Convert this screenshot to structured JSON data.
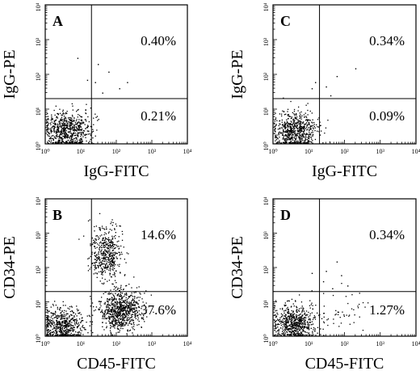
{
  "chart_data": [
    {
      "type": "scatter",
      "panel": "A",
      "xlabel": "IgG-FITC",
      "ylabel": "IgG-PE",
      "xscale": "log",
      "yscale": "log",
      "xlim": [
        1,
        10000
      ],
      "ylim": [
        1,
        10000
      ],
      "x_ticks": [
        "10⁰",
        "10¹",
        "10²",
        "10³",
        "10⁴"
      ],
      "y_ticks": [
        "10⁰",
        "10¹",
        "10²",
        "10³",
        "10⁴"
      ],
      "quadrant_gates": {
        "x": 20,
        "y": 20
      },
      "annotations": {
        "upper_right": "0.40%",
        "lower_right": "0.21%"
      },
      "populations": [
        {
          "cx": 4,
          "cy": 2.5,
          "spread_x": 0.32,
          "spread_y": 0.28,
          "count": 700
        }
      ],
      "outliers": [
        [
          30,
          200
        ],
        [
          60,
          120
        ],
        [
          25,
          60
        ],
        [
          120,
          40
        ],
        [
          8,
          300
        ],
        [
          40,
          30
        ],
        [
          200,
          60
        ],
        [
          15,
          70
        ]
      ]
    },
    {
      "type": "scatter",
      "panel": "B",
      "xlabel": "CD45-FITC",
      "ylabel": "CD34-PE",
      "xscale": "log",
      "yscale": "log",
      "xlim": [
        1,
        10000
      ],
      "ylim": [
        1,
        10000
      ],
      "x_ticks": [
        "10⁰",
        "10¹",
        "10²",
        "10³",
        "10⁴"
      ],
      "y_ticks": [
        "10⁰",
        "10¹",
        "10²",
        "10³",
        "10⁴"
      ],
      "quadrant_gates": {
        "x": 20,
        "y": 20
      },
      "annotations": {
        "upper_right": "14.6%",
        "lower_right": "37.6%"
      },
      "populations": [
        {
          "cx": 3,
          "cy": 2.2,
          "spread_x": 0.32,
          "spread_y": 0.25,
          "count": 550
        },
        {
          "cx": 50,
          "cy": 250,
          "spread_x": 0.22,
          "spread_y": 0.38,
          "count": 480
        },
        {
          "cx": 130,
          "cy": 6,
          "spread_x": 0.3,
          "spread_y": 0.3,
          "count": 750
        }
      ],
      "outliers": []
    },
    {
      "type": "scatter",
      "panel": "C",
      "xlabel": "IgG-FITC",
      "ylabel": "IgG-PE",
      "xscale": "log",
      "yscale": "log",
      "xlim": [
        1,
        10000
      ],
      "ylim": [
        1,
        10000
      ],
      "x_ticks": [
        "10⁰",
        "10¹",
        "10²",
        "10³",
        "10⁴"
      ],
      "y_ticks": [
        "10⁰",
        "10¹",
        "10²",
        "10³",
        "10⁴"
      ],
      "quadrant_gates": {
        "x": 20,
        "y": 20
      },
      "annotations": {
        "upper_right": "0.34%",
        "lower_right": "0.09%"
      },
      "populations": [
        {
          "cx": 4,
          "cy": 2.5,
          "spread_x": 0.3,
          "spread_y": 0.27,
          "count": 650
        }
      ],
      "outliers": [
        [
          30,
          45
        ],
        [
          60,
          90
        ],
        [
          200,
          150
        ],
        [
          15,
          60
        ],
        [
          40,
          25
        ],
        [
          12,
          40
        ]
      ]
    },
    {
      "type": "scatter",
      "panel": "D",
      "xlabel": "CD45-FITC",
      "ylabel": "CD34-PE",
      "xscale": "log",
      "yscale": "log",
      "xlim": [
        1,
        10000
      ],
      "ylim": [
        1,
        10000
      ],
      "x_ticks": [
        "10⁰",
        "10¹",
        "10²",
        "10³",
        "10⁴"
      ],
      "y_ticks": [
        "10⁰",
        "10¹",
        "10²",
        "10³",
        "10⁴"
      ],
      "quadrant_gates": {
        "x": 20,
        "y": 20
      },
      "annotations": {
        "upper_right": "0.34%",
        "lower_right": "1.27%"
      },
      "populations": [
        {
          "cx": 4,
          "cy": 2.5,
          "spread_x": 0.3,
          "spread_y": 0.28,
          "count": 650
        },
        {
          "cx": 90,
          "cy": 6,
          "spread_x": 0.35,
          "spread_y": 0.3,
          "count": 45
        }
      ],
      "outliers": [
        [
          30,
          80
        ],
        [
          60,
          150
        ],
        [
          25,
          40
        ],
        [
          120,
          30
        ],
        [
          45,
          25
        ],
        [
          80,
          60
        ],
        [
          12,
          70
        ]
      ]
    }
  ]
}
